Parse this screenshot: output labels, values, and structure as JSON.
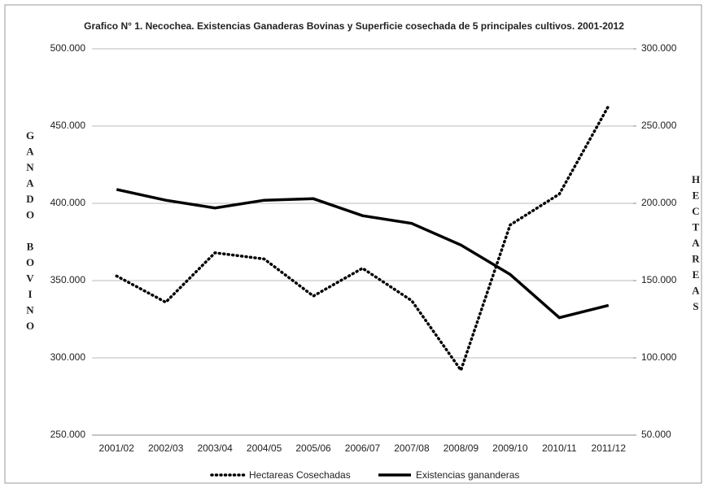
{
  "chart_data": {
    "type": "line",
    "title": "Grafico N° 1. Necochea. Existencias Ganaderas Bovinas y Superficie cosechada de 5 principales cultivos. 2001-2012",
    "y_label": "GANADO BOVINO",
    "y2_label": "HECTAREAS",
    "categories": [
      "2001/02",
      "2002/03",
      "2003/04",
      "2004/05",
      "2005/06",
      "2006/07",
      "2007/08",
      "2008/09",
      "2009/10",
      "2010/11",
      "2011/12"
    ],
    "series": [
      {
        "name": "Hectareas Cosechadas",
        "color": "#000000",
        "dash": "dotted",
        "axis": "y2",
        "values": [
          153000,
          136000,
          168000,
          164000,
          140000,
          158000,
          137000,
          92000,
          186000,
          206000,
          263000
        ]
      },
      {
        "name": "Existencias gananderas",
        "color": "#000000",
        "dash": "solid",
        "values": [
          409000,
          402000,
          397000,
          402000,
          403000,
          392000,
          387000,
          373000,
          354000,
          326000,
          334000
        ]
      }
    ],
    "ylim": [
      250000,
      500000
    ],
    "yticks": [
      {
        "value": 250000,
        "label": "250.000"
      },
      {
        "value": 300000,
        "label": "300.000"
      },
      {
        "value": 350000,
        "label": "350.000"
      },
      {
        "value": 400000,
        "label": "400.000"
      },
      {
        "value": 450000,
        "label": "450.000"
      },
      {
        "value": 500000,
        "label": "500.000"
      }
    ],
    "y2lim": [
      50000,
      300000
    ],
    "y2ticks": [
      {
        "value": 50000,
        "label": "50.000"
      },
      {
        "value": 100000,
        "label": "100.000"
      },
      {
        "value": 150000,
        "label": "150.000"
      },
      {
        "value": 200000,
        "label": "200.000"
      },
      {
        "value": 250000,
        "label": "250.000"
      },
      {
        "value": 300000,
        "label": "300.000"
      }
    ],
    "grid": true,
    "legend": "bottom"
  }
}
